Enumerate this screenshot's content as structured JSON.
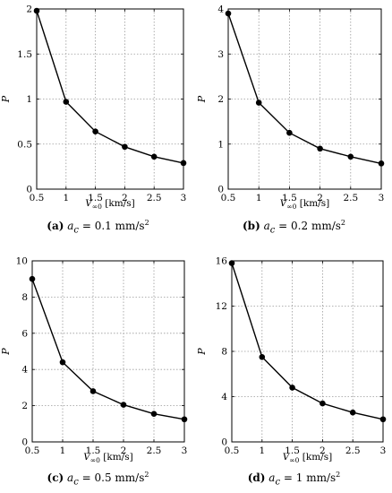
{
  "chart_data": [
    {
      "type": "line",
      "panel_letter": "(a)",
      "caption_math": "a",
      "caption_sub": "c",
      "caption_value": "= 0.1 mm/s",
      "caption_exp": "2",
      "ylabel": "P",
      "xlabel_base": "V",
      "xlabel_sub": "∞0",
      "xlabel_unit": "[km/s]",
      "x": [
        0.5,
        1,
        1.5,
        2,
        2.5,
        3
      ],
      "y": [
        1.98,
        0.97,
        0.64,
        0.47,
        0.36,
        0.29
      ],
      "xlim": [
        0.5,
        3
      ],
      "ylim": [
        0,
        2
      ],
      "xticks": [
        "0.5",
        "1",
        "1.5",
        "2",
        "2.5",
        "3"
      ],
      "yticks": [
        "0",
        "0.5",
        "1",
        "1.5",
        "2"
      ],
      "grid": true
    },
    {
      "type": "line",
      "panel_letter": "(b)",
      "caption_math": "a",
      "caption_sub": "c",
      "caption_value": "= 0.2 mm/s",
      "caption_exp": "2",
      "ylabel": "P",
      "xlabel_base": "V",
      "xlabel_sub": "∞0",
      "xlabel_unit": "[km/s]",
      "x": [
        0.5,
        1,
        1.5,
        2,
        2.5,
        3
      ],
      "y": [
        3.9,
        1.92,
        1.25,
        0.9,
        0.72,
        0.57
      ],
      "xlim": [
        0.5,
        3
      ],
      "ylim": [
        0,
        4
      ],
      "xticks": [
        "0.5",
        "1",
        "1.5",
        "2",
        "2.5",
        "3"
      ],
      "yticks": [
        "0",
        "1",
        "2",
        "3",
        "4"
      ],
      "grid": true
    },
    {
      "type": "line",
      "panel_letter": "(c)",
      "caption_math": "a",
      "caption_sub": "c",
      "caption_value": "= 0.5 mm/s",
      "caption_exp": "2",
      "ylabel": "P",
      "xlabel_base": "V",
      "xlabel_sub": "∞0",
      "xlabel_unit": "[km/s]",
      "x": [
        0.5,
        1,
        1.5,
        2,
        2.5,
        3
      ],
      "y": [
        9.0,
        4.4,
        2.8,
        2.05,
        1.55,
        1.25
      ],
      "xlim": [
        0.5,
        3
      ],
      "ylim": [
        0,
        10
      ],
      "xticks": [
        "0.5",
        "1",
        "1.5",
        "2",
        "2.5",
        "3"
      ],
      "yticks": [
        "0",
        "2",
        "4",
        "6",
        "8",
        "10"
      ],
      "grid": true
    },
    {
      "type": "line",
      "panel_letter": "(d)",
      "caption_math": "a",
      "caption_sub": "c",
      "caption_value": "= 1 mm/s",
      "caption_exp": "2",
      "ylabel": "P",
      "xlabel_base": "V",
      "xlabel_sub": "∞0",
      "xlabel_unit": "[km/s]",
      "x": [
        0.5,
        1,
        1.5,
        2,
        2.5,
        3
      ],
      "y": [
        15.8,
        7.5,
        4.8,
        3.4,
        2.6,
        2.0
      ],
      "xlim": [
        0.5,
        3
      ],
      "ylim": [
        0,
        16
      ],
      "xticks": [
        "0.5",
        "1",
        "1.5",
        "2",
        "2.5",
        "3"
      ],
      "yticks": [
        "0",
        "4",
        "8",
        "12",
        "16"
      ],
      "grid": true
    }
  ]
}
